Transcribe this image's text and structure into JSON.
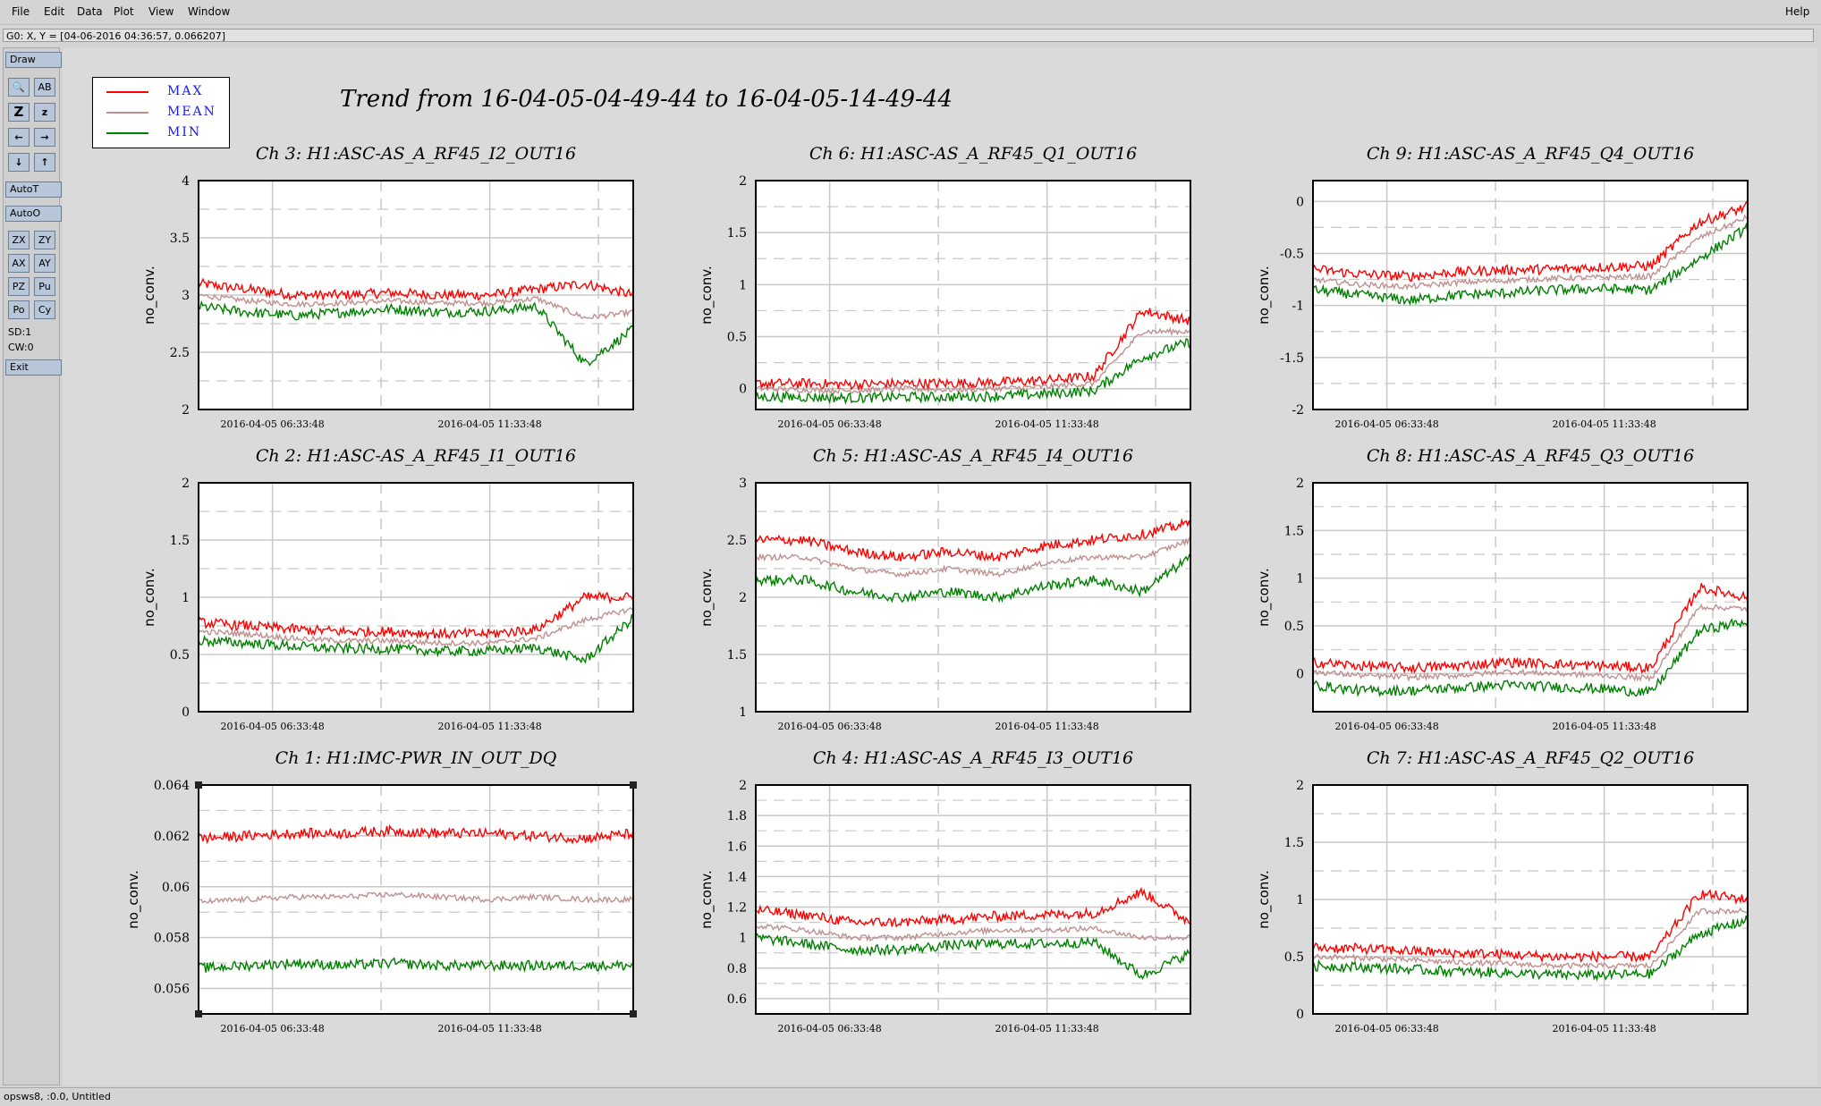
{
  "menu": {
    "file": "File",
    "edit": "Edit",
    "data": "Data",
    "plot": "Plot",
    "view": "View",
    "window": "Window",
    "help": "Help"
  },
  "coord_readout": "G0: X, Y = [04-06-2016 04:36:57, 0.066207]",
  "toolbar": {
    "draw": "Draw",
    "autot": "AutoT",
    "autoo": "AutoO",
    "zx": "ZX",
    "zy": "ZY",
    "ax": "AX",
    "ay": "AY",
    "pz": "PZ",
    "pu": "Pu",
    "po": "Po",
    "cy": "Cy",
    "sd": "SD:1",
    "cw": "CW:0",
    "exit": "Exit",
    "icons": [
      "magnify-icon",
      "text-label-icon",
      "zoom-z-icon",
      "zoom-z-small-icon",
      "arrow-left-icon",
      "arrow-right-icon",
      "arrow-down-icon",
      "arrow-up-icon"
    ],
    "icon_glyphs": [
      "🔍",
      "AB",
      "Z",
      "z",
      "←",
      "→",
      "↓",
      "↑"
    ]
  },
  "status": "opsws8, :0.0, Untitled",
  "main_title": "Trend from 16-04-05-04-49-44 to 16-04-05-14-49-44",
  "legend": [
    {
      "label": "MAX",
      "color": "#ff0000"
    },
    {
      "label": "MEAN",
      "color": "#c09090"
    },
    {
      "label": "MIN",
      "color": "#008000"
    }
  ],
  "colors": {
    "max": "#ff0000",
    "mean": "#c09090",
    "min": "#008000",
    "grid": "#c8c8c8"
  },
  "chart_data": [
    {
      "type": "line",
      "title": "Ch 3: H1:ASC-AS_A_RF45_I2_OUT16",
      "ylabel": "no_conv.",
      "ylim": [
        2,
        4
      ],
      "yticks": [
        "2",
        "2.5",
        "3",
        "3.5",
        "4"
      ],
      "xticks": [
        "2016-04-05 06:33:48",
        "2016-04-05 11:33:48"
      ],
      "series": [
        {
          "name": "MAX",
          "values": [
            3.1,
            3.05,
            3.0,
            3.0,
            3.02,
            3.0,
            3.0,
            3.05,
            3.1,
            3.0
          ]
        },
        {
          "name": "MEAN",
          "values": [
            3.0,
            2.95,
            2.92,
            2.93,
            2.95,
            2.93,
            2.93,
            2.97,
            2.8,
            2.85
          ]
        },
        {
          "name": "MIN",
          "values": [
            2.9,
            2.85,
            2.82,
            2.85,
            2.88,
            2.85,
            2.86,
            2.9,
            2.4,
            2.7
          ]
        }
      ]
    },
    {
      "type": "line",
      "title": "Ch 6: H1:ASC-AS_A_RF45_Q1_OUT16",
      "ylabel": "no_conv.",
      "ylim": [
        -0.2,
        2
      ],
      "yticks": [
        "0",
        "0.5",
        "1",
        "1.5",
        "2"
      ],
      "xticks": [
        "2016-04-05 06:33:48",
        "2016-04-05 11:33:48"
      ],
      "series": [
        {
          "name": "MAX",
          "values": [
            0.05,
            0.05,
            0.04,
            0.05,
            0.05,
            0.06,
            0.08,
            0.12,
            0.75,
            0.65
          ]
        },
        {
          "name": "MEAN",
          "values": [
            0.0,
            -0.01,
            -0.02,
            0.0,
            -0.01,
            0.0,
            0.02,
            0.05,
            0.55,
            0.55
          ]
        },
        {
          "name": "MIN",
          "values": [
            -0.08,
            -0.08,
            -0.09,
            -0.08,
            -0.08,
            -0.07,
            -0.05,
            -0.02,
            0.3,
            0.45
          ]
        }
      ]
    },
    {
      "type": "line",
      "title": "Ch 9: H1:ASC-AS_A_RF45_Q4_OUT16",
      "ylabel": "no_conv.",
      "ylim": [
        -2,
        0.2
      ],
      "yticks": [
        "-2",
        "-1.5",
        "-1",
        "-0.5",
        "0"
      ],
      "xticks": [
        "2016-04-05 06:33:48",
        "2016-04-05 11:33:48"
      ],
      "series": [
        {
          "name": "MAX",
          "values": [
            -0.65,
            -0.7,
            -0.72,
            -0.68,
            -0.66,
            -0.65,
            -0.63,
            -0.62,
            -0.2,
            -0.05
          ]
        },
        {
          "name": "MEAN",
          "values": [
            -0.75,
            -0.8,
            -0.82,
            -0.78,
            -0.76,
            -0.74,
            -0.73,
            -0.72,
            -0.35,
            -0.15
          ]
        },
        {
          "name": "MIN",
          "values": [
            -0.85,
            -0.9,
            -0.95,
            -0.9,
            -0.88,
            -0.85,
            -0.84,
            -0.85,
            -0.55,
            -0.25
          ]
        }
      ]
    },
    {
      "type": "line",
      "title": "Ch 2: H1:ASC-AS_A_RF45_I1_OUT16",
      "ylabel": "no_conv.",
      "ylim": [
        0,
        2
      ],
      "yticks": [
        "0",
        "0.5",
        "1",
        "1.5",
        "2"
      ],
      "xticks": [
        "2016-04-05 06:33:48",
        "2016-04-05 11:33:48"
      ],
      "series": [
        {
          "name": "MAX",
          "values": [
            0.78,
            0.75,
            0.72,
            0.7,
            0.7,
            0.68,
            0.68,
            0.72,
            1.0,
            1.0
          ]
        },
        {
          "name": "MEAN",
          "values": [
            0.7,
            0.68,
            0.64,
            0.62,
            0.62,
            0.6,
            0.6,
            0.64,
            0.8,
            0.9
          ]
        },
        {
          "name": "MIN",
          "values": [
            0.62,
            0.6,
            0.57,
            0.55,
            0.55,
            0.53,
            0.53,
            0.56,
            0.45,
            0.82
          ]
        }
      ]
    },
    {
      "type": "line",
      "title": "Ch 5: H1:ASC-AS_A_RF45_I4_OUT16",
      "ylabel": "no_conv.",
      "ylim": [
        1,
        3
      ],
      "yticks": [
        "1",
        "1.5",
        "2",
        "2.5",
        "3"
      ],
      "xticks": [
        "2016-04-05 06:33:48",
        "2016-04-05 11:33:48"
      ],
      "series": [
        {
          "name": "MAX",
          "values": [
            2.5,
            2.5,
            2.4,
            2.35,
            2.4,
            2.35,
            2.45,
            2.5,
            2.55,
            2.65
          ]
        },
        {
          "name": "MEAN",
          "values": [
            2.35,
            2.35,
            2.25,
            2.2,
            2.25,
            2.2,
            2.3,
            2.35,
            2.35,
            2.5
          ]
        },
        {
          "name": "MIN",
          "values": [
            2.15,
            2.15,
            2.05,
            2.0,
            2.05,
            2.0,
            2.1,
            2.15,
            2.05,
            2.35
          ]
        }
      ]
    },
    {
      "type": "line",
      "title": "Ch 8: H1:ASC-AS_A_RF45_Q3_OUT16",
      "ylabel": "no_conv.",
      "ylim": [
        -0.4,
        2
      ],
      "yticks": [
        "0",
        "0.5",
        "1",
        "1.5",
        "2"
      ],
      "xticks": [
        "2016-04-05 06:33:48",
        "2016-04-05 11:33:48"
      ],
      "series": [
        {
          "name": "MAX",
          "values": [
            0.12,
            0.08,
            0.06,
            0.08,
            0.12,
            0.1,
            0.08,
            0.06,
            0.9,
            0.8
          ]
        },
        {
          "name": "MEAN",
          "values": [
            0.02,
            -0.02,
            -0.04,
            -0.02,
            0.02,
            0.0,
            -0.02,
            -0.05,
            0.7,
            0.68
          ]
        },
        {
          "name": "MIN",
          "values": [
            -0.12,
            -0.18,
            -0.18,
            -0.15,
            -0.12,
            -0.14,
            -0.16,
            -0.2,
            0.45,
            0.55
          ]
        }
      ]
    },
    {
      "type": "line",
      "title": "Ch 1: H1:IMC-PWR_IN_OUT_DQ",
      "ylabel": "no_conv.",
      "ylim": [
        0.055,
        0.064
      ],
      "yticks": [
        "0.056",
        "0.058",
        "0.06",
        "0.062",
        "0.064"
      ],
      "xticks": [
        "2016-04-05 06:33:48",
        "2016-04-05 11:33:48"
      ],
      "series": [
        {
          "name": "MAX",
          "values": [
            0.0619,
            0.062,
            0.0621,
            0.0621,
            0.0622,
            0.0621,
            0.0621,
            0.062,
            0.0619,
            0.0621
          ]
        },
        {
          "name": "MEAN",
          "values": [
            0.0594,
            0.0595,
            0.0596,
            0.0596,
            0.0597,
            0.0596,
            0.0595,
            0.0596,
            0.0595,
            0.0595
          ]
        },
        {
          "name": "MIN",
          "values": [
            0.0568,
            0.0569,
            0.057,
            0.0569,
            0.057,
            0.0569,
            0.0569,
            0.0569,
            0.0569,
            0.0569
          ]
        }
      ]
    },
    {
      "type": "line",
      "title": "Ch 4: H1:ASC-AS_A_RF45_I3_OUT16",
      "ylabel": "no_conv.",
      "ylim": [
        0.5,
        2
      ],
      "yticks": [
        "0.6",
        "0.8",
        "1",
        "1.2",
        "1.4",
        "1.6",
        "1.8",
        "2"
      ],
      "xticks": [
        "2016-04-05 06:33:48",
        "2016-04-05 11:33:48"
      ],
      "series": [
        {
          "name": "MAX",
          "values": [
            1.18,
            1.15,
            1.1,
            1.1,
            1.12,
            1.14,
            1.15,
            1.16,
            1.3,
            1.1
          ]
        },
        {
          "name": "MEAN",
          "values": [
            1.08,
            1.05,
            1.0,
            1.0,
            1.03,
            1.05,
            1.05,
            1.06,
            1.0,
            1.0
          ]
        },
        {
          "name": "MIN",
          "values": [
            1.0,
            0.96,
            0.92,
            0.92,
            0.95,
            0.96,
            0.96,
            0.97,
            0.75,
            0.9
          ]
        }
      ]
    },
    {
      "type": "line",
      "title": "Ch 7: H1:ASC-AS_A_RF45_Q2_OUT16",
      "ylabel": "no_conv.",
      "ylim": [
        0,
        2
      ],
      "yticks": [
        "0",
        "0.5",
        "1",
        "1.5",
        "2"
      ],
      "xticks": [
        "2016-04-05 06:33:48",
        "2016-04-05 11:33:48"
      ],
      "series": [
        {
          "name": "MAX",
          "values": [
            0.58,
            0.57,
            0.55,
            0.53,
            0.52,
            0.5,
            0.5,
            0.5,
            1.05,
            1.0
          ]
        },
        {
          "name": "MEAN",
          "values": [
            0.5,
            0.49,
            0.47,
            0.45,
            0.44,
            0.42,
            0.42,
            0.42,
            0.9,
            0.9
          ]
        },
        {
          "name": "MIN",
          "values": [
            0.42,
            0.41,
            0.39,
            0.37,
            0.36,
            0.34,
            0.34,
            0.35,
            0.7,
            0.82
          ]
        }
      ]
    }
  ]
}
